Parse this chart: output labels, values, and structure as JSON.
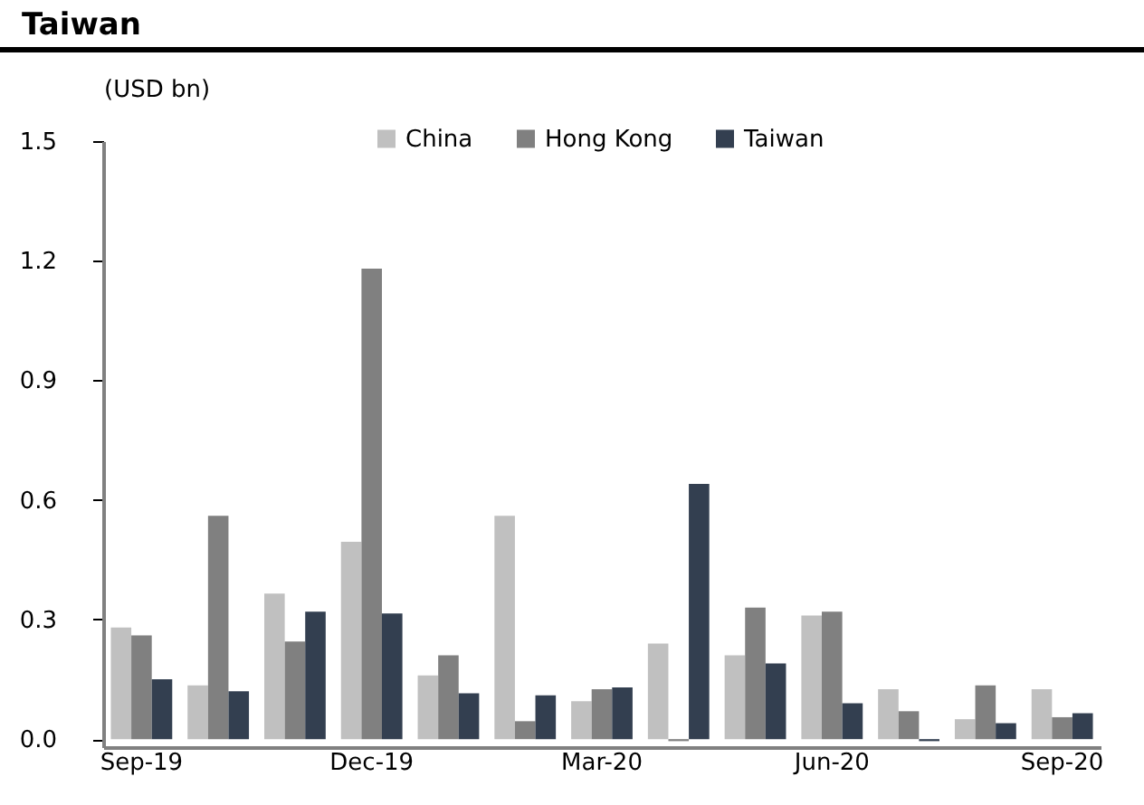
{
  "chart_data": {
    "type": "bar",
    "title": "Taiwan",
    "ylabel": "(USD bn)",
    "categories": [
      "Sep-19",
      null,
      null,
      "Dec-19",
      null,
      null,
      "Mar-20",
      null,
      null,
      "Jun-20",
      null,
      null,
      "Sep-20"
    ],
    "series": [
      {
        "name": "China",
        "color": "#c0c0c0",
        "values": [
          0.28,
          0.135,
          0.365,
          0.495,
          0.16,
          0.56,
          0.095,
          0.24,
          0.21,
          0.31,
          0.125,
          0.05,
          0.125
        ]
      },
      {
        "name": "Hong Kong",
        "color": "#808080",
        "values": [
          0.26,
          0.56,
          0.245,
          1.18,
          0.21,
          0.045,
          0.125,
          -0.005,
          0.33,
          0.32,
          0.07,
          0.135,
          0.055
        ]
      },
      {
        "name": "Taiwan",
        "color": "#333f50",
        "values": [
          0.15,
          0.12,
          0.32,
          0.315,
          0.115,
          0.11,
          0.13,
          0.64,
          0.19,
          0.09,
          -0.005,
          0.04,
          0.065
        ]
      }
    ],
    "ylim": [
      -0.02,
      1.5
    ],
    "yticks": [
      {
        "value": 0,
        "label": "0.0"
      },
      0.3,
      0.6,
      0.9,
      1.2,
      1.5
    ],
    "grid": false,
    "legend": "top"
  }
}
